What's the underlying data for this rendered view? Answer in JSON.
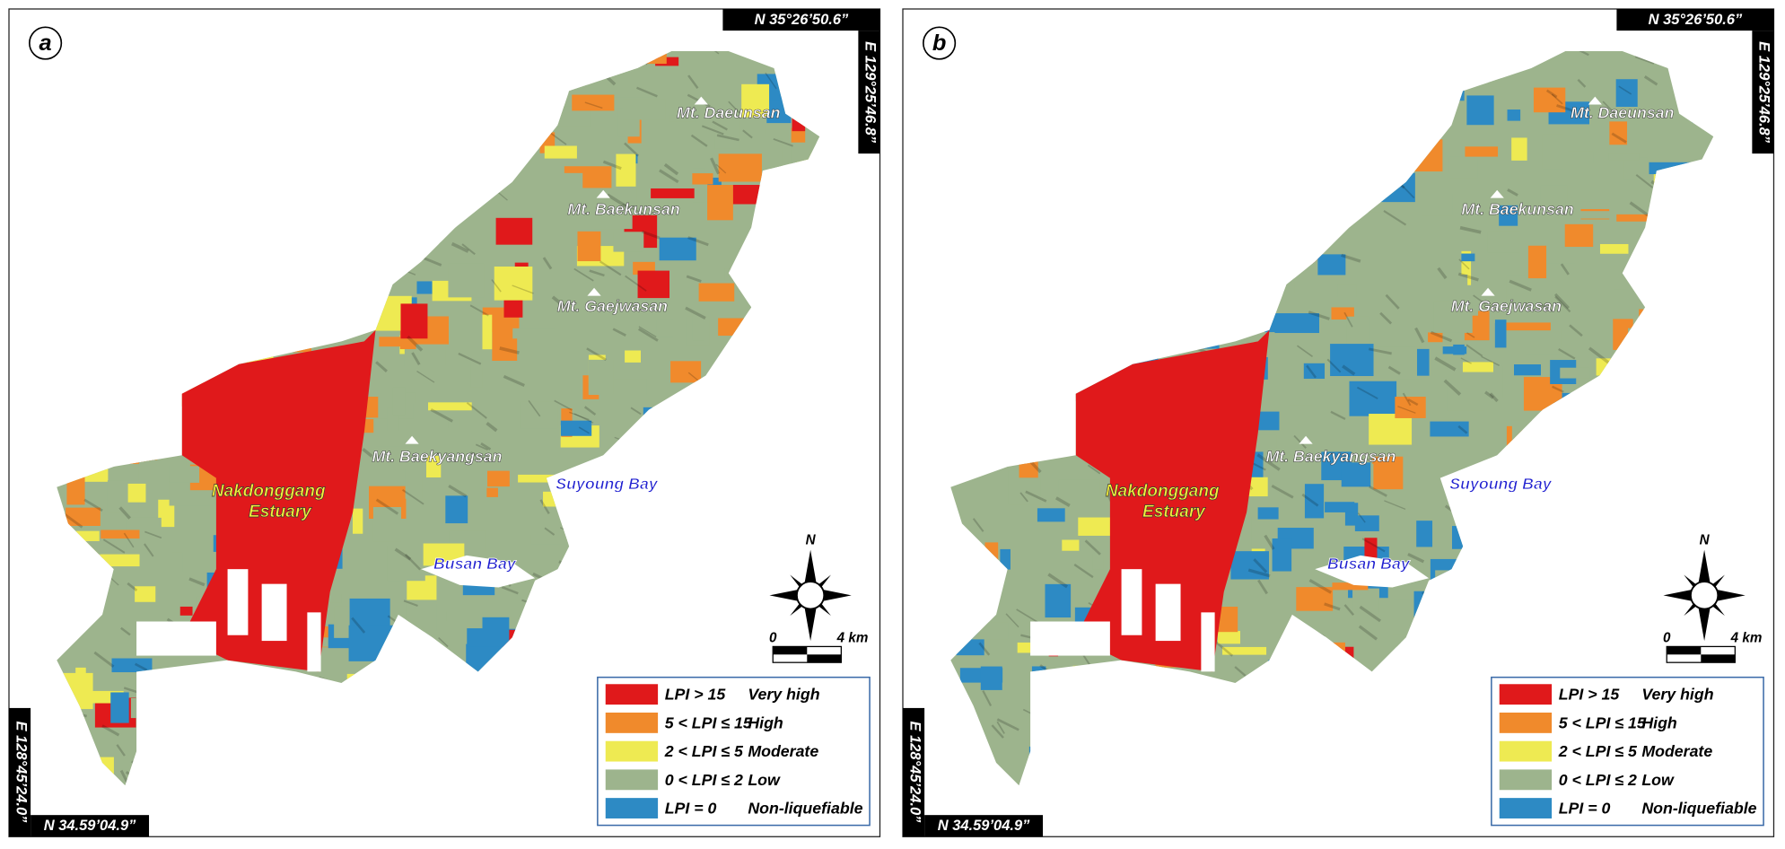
{
  "panels": [
    {
      "label": "a"
    },
    {
      "label": "b"
    }
  ],
  "coordinates": {
    "top": "N 35°26’50.6”",
    "right": "E 129°25’46.8”",
    "left": "E 128°45’24.0”",
    "bottom": "N 34.59’04.9”"
  },
  "places": {
    "peaks": [
      "Mt. Daeunsan",
      "Mt. Baekunsan",
      "Mt. Gaejwasan",
      "Mt. Baekyangsan"
    ],
    "estuary": [
      "Nakdonggang",
      "Estuary"
    ],
    "bays": [
      "Suyoung Bay",
      "Busan Bay"
    ]
  },
  "compass": "N",
  "scale_bar": [
    "0",
    "4 km"
  ],
  "legend": [
    {
      "condition": "LPI > 15",
      "class": "Very high",
      "color": "#e0191b"
    },
    {
      "condition": "5 < LPI ≤ 15",
      "class": "High",
      "color": "#f08a2c"
    },
    {
      "condition": "2 < LPI ≤ 5",
      "class": "Moderate",
      "color": "#eeea52"
    },
    {
      "condition": "0 < LPI ≤ 2",
      "class": "Low",
      "color": "#9db48d"
    },
    {
      "condition": "LPI = 0",
      "class": "Non-liquefiable",
      "color": "#2d8ac4"
    }
  ]
}
